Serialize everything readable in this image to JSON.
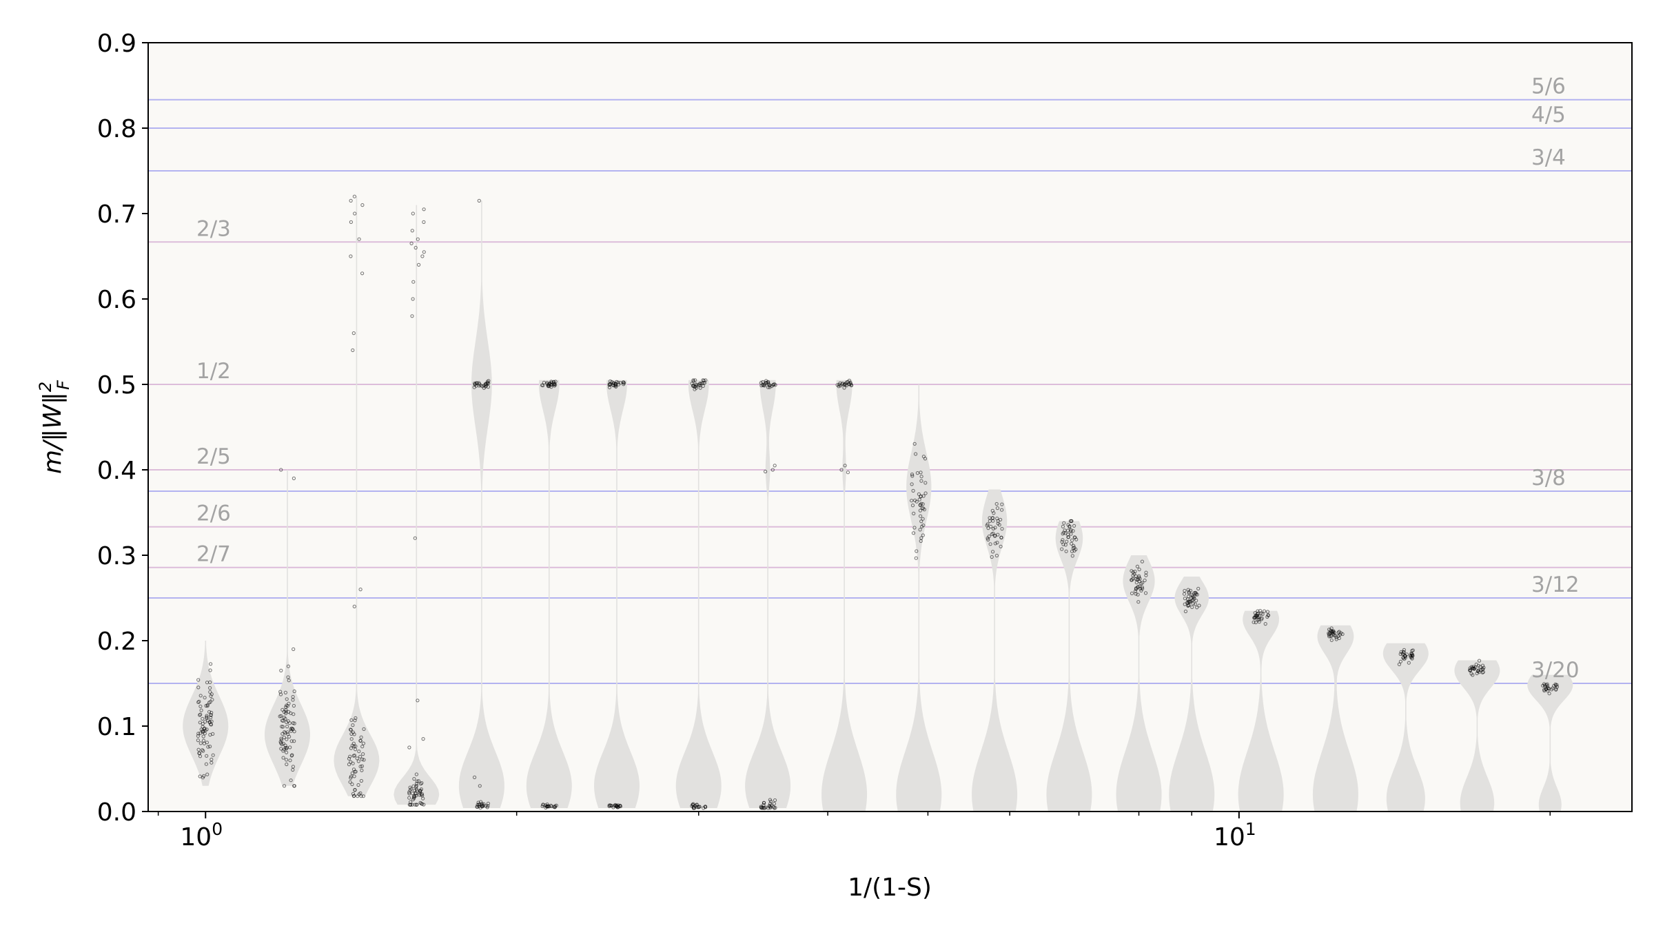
{
  "chart_data": {
    "type": "violin",
    "xlabel": "1/(1-S)",
    "ylabel_base": "m/‖W‖",
    "ylabel_sup": "2",
    "ylabel_sub": "F",
    "x_scale": "log",
    "xlim": [
      0.88,
      24
    ],
    "ylim": [
      0,
      0.9
    ],
    "x_tick_labels": [
      {
        "value": 1,
        "base": "10",
        "exp": "0"
      },
      {
        "value": 10,
        "base": "10",
        "exp": "1"
      }
    ],
    "y_ticks": [
      "0.0",
      "0.1",
      "0.2",
      "0.3",
      "0.4",
      "0.5",
      "0.6",
      "0.7",
      "0.8",
      "0.9"
    ],
    "grid": false,
    "colors": {
      "plot_background": "#faf9f6",
      "violin_fill": "#e2e1df",
      "point_stroke": "#000000",
      "label_gray": "#a3a3a3",
      "line_blue": "#b3b3f0",
      "line_pink": "#dcbdda"
    },
    "reference_lines": [
      {
        "label": "5/6",
        "y": 0.8333,
        "color": "#b3b3f0",
        "label_side": "right"
      },
      {
        "label": "4/5",
        "y": 0.8,
        "color": "#b3b3f0",
        "label_side": "right"
      },
      {
        "label": "3/4",
        "y": 0.75,
        "color": "#b3b3f0",
        "label_side": "right"
      },
      {
        "label": "2/3",
        "y": 0.6667,
        "color": "#dcbdda",
        "label_side": "left"
      },
      {
        "label": "1/2",
        "y": 0.5,
        "color": "#dcbdda",
        "label_side": "left"
      },
      {
        "label": "2/5",
        "y": 0.4,
        "color": "#dcbdda",
        "label_side": "left"
      },
      {
        "label": "3/8",
        "y": 0.375,
        "color": "#b3b3f0",
        "label_side": "right"
      },
      {
        "label": "2/6",
        "y": 0.3333,
        "color": "#dcbdda",
        "label_side": "left"
      },
      {
        "label": "2/7",
        "y": 0.2857,
        "color": "#dcbdda",
        "label_side": "left"
      },
      {
        "label": "3/12",
        "y": 0.25,
        "color": "#b3b3f0",
        "label_side": "right"
      },
      {
        "label": "3/20",
        "y": 0.15,
        "color": "#b3b3f0",
        "label_side": "right"
      }
    ],
    "violins": [
      {
        "x": 1.0,
        "min": 0.03,
        "max": 0.2,
        "lobes": [
          {
            "c": 0.1,
            "s": 0.035,
            "w": 1.0
          }
        ],
        "clusters": [
          {
            "y": 0.1,
            "sd": 0.03,
            "n": 80
          }
        ]
      },
      {
        "x": 1.2,
        "min": 0.03,
        "max": 0.4,
        "lobes": [
          {
            "c": 0.09,
            "s": 0.035,
            "w": 1.0
          }
        ],
        "clusters": [
          {
            "y": 0.095,
            "sd": 0.03,
            "n": 80
          }
        ],
        "points": [
          0.39,
          0.4,
          0.17,
          0.19
        ]
      },
      {
        "x": 1.4,
        "min": 0.018,
        "max": 0.72,
        "lobes": [
          {
            "c": 0.06,
            "s": 0.03,
            "w": 1.0
          },
          {
            "c": 0.69,
            "s": 0.03,
            "w": 0.02
          }
        ],
        "clusters": [
          {
            "y": 0.06,
            "sd": 0.025,
            "n": 60
          }
        ],
        "points": [
          0.72,
          0.715,
          0.71,
          0.7,
          0.69,
          0.67,
          0.65,
          0.63,
          0.56,
          0.54,
          0.26,
          0.24
        ]
      },
      {
        "x": 1.6,
        "min": 0.008,
        "max": 0.71,
        "lobes": [
          {
            "c": 0.02,
            "s": 0.02,
            "w": 1.0
          },
          {
            "c": 0.66,
            "s": 0.03,
            "w": 0.02
          }
        ],
        "clusters": [
          {
            "y": 0.02,
            "sd": 0.01,
            "n": 50
          }
        ],
        "points": [
          0.705,
          0.7,
          0.69,
          0.68,
          0.67,
          0.665,
          0.66,
          0.655,
          0.65,
          0.64,
          0.62,
          0.6,
          0.58,
          0.32,
          0.13,
          0.085,
          0.075
        ]
      },
      {
        "x": 1.85,
        "min": 0.004,
        "max": 0.715,
        "lobes": [
          {
            "c": 0.03,
            "s": 0.04,
            "w": 1.0
          },
          {
            "c": 0.5,
            "s": 0.05,
            "w": 0.45
          }
        ],
        "clusters": [
          {
            "y": 0.5,
            "sd": 0.002,
            "n": 25
          },
          {
            "y": 0.007,
            "sd": 0.002,
            "n": 20
          }
        ],
        "points": [
          0.715,
          0.04,
          0.03
        ]
      },
      {
        "x": 2.15,
        "min": 0.004,
        "max": 0.505,
        "lobes": [
          {
            "c": 0.03,
            "s": 0.04,
            "w": 1.0
          },
          {
            "c": 0.5,
            "s": 0.03,
            "w": 0.45
          }
        ],
        "clusters": [
          {
            "y": 0.5,
            "sd": 0.002,
            "n": 25
          },
          {
            "y": 0.006,
            "sd": 0.001,
            "n": 20
          }
        ]
      },
      {
        "x": 2.5,
        "min": 0.004,
        "max": 0.505,
        "lobes": [
          {
            "c": 0.03,
            "s": 0.04,
            "w": 1.0
          },
          {
            "c": 0.5,
            "s": 0.03,
            "w": 0.45
          }
        ],
        "clusters": [
          {
            "y": 0.5,
            "sd": 0.002,
            "n": 25
          },
          {
            "y": 0.006,
            "sd": 0.001,
            "n": 20
          }
        ]
      },
      {
        "x": 3.0,
        "min": 0.004,
        "max": 0.505,
        "lobes": [
          {
            "c": 0.03,
            "s": 0.04,
            "w": 1.0
          },
          {
            "c": 0.5,
            "s": 0.03,
            "w": 0.45
          }
        ],
        "clusters": [
          {
            "y": 0.5,
            "sd": 0.003,
            "n": 25
          },
          {
            "y": 0.006,
            "sd": 0.002,
            "n": 20
          }
        ]
      },
      {
        "x": 3.5,
        "min": 0.004,
        "max": 0.505,
        "lobes": [
          {
            "c": 0.03,
            "s": 0.04,
            "w": 1.0
          },
          {
            "c": 0.5,
            "s": 0.03,
            "w": 0.35
          },
          {
            "c": 0.4,
            "s": 0.02,
            "w": 0.1
          }
        ],
        "clusters": [
          {
            "y": 0.5,
            "sd": 0.002,
            "n": 22
          },
          {
            "y": 0.006,
            "sd": 0.003,
            "n": 25
          }
        ],
        "points": [
          0.405,
          0.4,
          0.398
        ]
      },
      {
        "x": 4.15,
        "min": 0.0,
        "max": 0.505,
        "lobes": [
          {
            "c": 0.02,
            "s": 0.05,
            "w": 1.0
          },
          {
            "c": 0.5,
            "s": 0.03,
            "w": 0.35
          },
          {
            "c": 0.4,
            "s": 0.02,
            "w": 0.08
          }
        ],
        "clusters": [
          {
            "y": 0.5,
            "sd": 0.002,
            "n": 22
          }
        ],
        "points": [
          0.405,
          0.4,
          0.397
        ]
      },
      {
        "x": 4.9,
        "min": 0.0,
        "max": 0.5,
        "lobes": [
          {
            "c": 0.02,
            "s": 0.05,
            "w": 1.0
          },
          {
            "c": 0.38,
            "s": 0.04,
            "w": 0.55
          }
        ],
        "clusters": [
          {
            "y": 0.37,
            "sd": 0.03,
            "n": 45
          }
        ]
      },
      {
        "x": 5.8,
        "min": 0.0,
        "max": 0.377,
        "lobes": [
          {
            "c": 0.02,
            "s": 0.05,
            "w": 1.0
          },
          {
            "c": 0.34,
            "s": 0.03,
            "w": 0.55
          }
        ],
        "clusters": [
          {
            "y": 0.332,
            "sd": 0.015,
            "n": 40
          }
        ]
      },
      {
        "x": 6.85,
        "min": 0.0,
        "max": 0.34,
        "lobes": [
          {
            "c": 0.02,
            "s": 0.05,
            "w": 1.0
          },
          {
            "c": 0.32,
            "s": 0.025,
            "w": 0.6
          }
        ],
        "clusters": [
          {
            "y": 0.325,
            "sd": 0.012,
            "n": 40
          }
        ]
      },
      {
        "x": 8.0,
        "min": 0.0,
        "max": 0.3,
        "lobes": [
          {
            "c": 0.02,
            "s": 0.05,
            "w": 1.0
          },
          {
            "c": 0.27,
            "s": 0.025,
            "w": 0.7
          }
        ],
        "clusters": [
          {
            "y": 0.268,
            "sd": 0.012,
            "n": 40
          }
        ]
      },
      {
        "x": 9.0,
        "min": 0.0,
        "max": 0.275,
        "lobes": [
          {
            "c": 0.02,
            "s": 0.05,
            "w": 1.0
          },
          {
            "c": 0.25,
            "s": 0.02,
            "w": 0.75
          }
        ],
        "clusters": [
          {
            "y": 0.248,
            "sd": 0.008,
            "n": 40
          }
        ]
      },
      {
        "x": 10.5,
        "min": 0.0,
        "max": 0.235,
        "lobes": [
          {
            "c": 0.02,
            "s": 0.05,
            "w": 1.0
          },
          {
            "c": 0.225,
            "s": 0.02,
            "w": 0.8
          }
        ],
        "clusters": [
          {
            "y": 0.228,
            "sd": 0.004,
            "n": 30
          }
        ]
      },
      {
        "x": 12.4,
        "min": 0.0,
        "max": 0.218,
        "lobes": [
          {
            "c": 0.02,
            "s": 0.05,
            "w": 1.0
          },
          {
            "c": 0.205,
            "s": 0.02,
            "w": 0.8
          }
        ],
        "clusters": [
          {
            "y": 0.208,
            "sd": 0.004,
            "n": 30
          }
        ]
      },
      {
        "x": 14.5,
        "min": 0.0,
        "max": 0.197,
        "lobes": [
          {
            "c": 0.015,
            "s": 0.035,
            "w": 0.85
          },
          {
            "c": 0.185,
            "s": 0.02,
            "w": 1.0
          }
        ],
        "clusters": [
          {
            "y": 0.183,
            "sd": 0.004,
            "n": 30
          }
        ]
      },
      {
        "x": 17.0,
        "min": 0.0,
        "max": 0.177,
        "lobes": [
          {
            "c": 0.01,
            "s": 0.03,
            "w": 0.75
          },
          {
            "c": 0.165,
            "s": 0.02,
            "w": 1.0
          }
        ],
        "clusters": [
          {
            "y": 0.166,
            "sd": 0.003,
            "n": 30
          }
        ]
      },
      {
        "x": 20.0,
        "min": 0.0,
        "max": 0.16,
        "lobes": [
          {
            "c": 0.008,
            "s": 0.02,
            "w": 0.5
          },
          {
            "c": 0.148,
            "s": 0.018,
            "w": 1.0
          }
        ],
        "clusters": [
          {
            "y": 0.146,
            "sd": 0.003,
            "n": 25
          }
        ]
      }
    ]
  }
}
